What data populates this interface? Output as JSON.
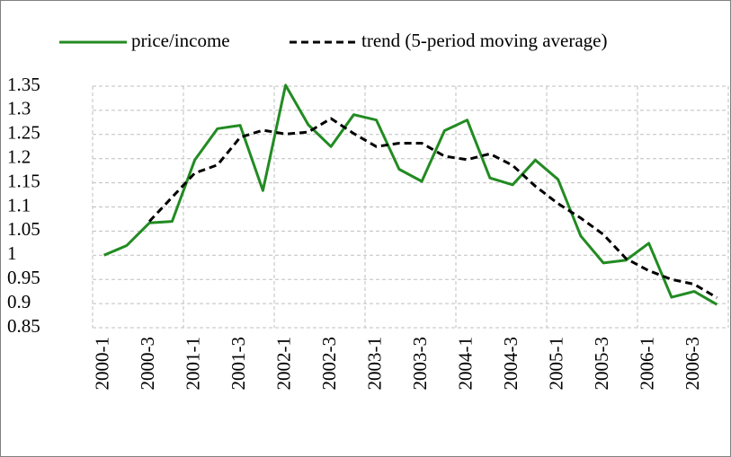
{
  "chart_data": {
    "type": "line",
    "categories": [
      "2000-1",
      null,
      "2000-3",
      null,
      "2001-1",
      null,
      "2001-3",
      null,
      "2002-1",
      null,
      "2002-3",
      null,
      "2003-1",
      null,
      "2003-3",
      null,
      "2004-1",
      null,
      "2004-3",
      null,
      "2005-1",
      null,
      "2005-3",
      null,
      "2006-1",
      null,
      "2006-3",
      null
    ],
    "series": [
      {
        "name": "price/income",
        "color": "#228b22",
        "values": [
          1.0,
          1.02,
          1.067,
          1.07,
          1.197,
          1.262,
          1.269,
          1.134,
          1.352,
          1.27,
          1.225,
          1.291,
          1.28,
          1.178,
          1.153,
          1.258,
          1.28,
          1.16,
          1.146,
          1.197,
          1.157,
          1.04,
          0.984,
          0.99,
          1.025,
          0.913,
          0.925,
          0.898
        ]
      },
      {
        "name": "trend (5-period moving average)",
        "color": "#000000",
        "dashed": true,
        "values": [
          null,
          null,
          1.07,
          1.12,
          1.17,
          1.187,
          1.244,
          1.259,
          1.251,
          1.255,
          1.283,
          1.252,
          1.225,
          1.232,
          1.232,
          1.205,
          1.198,
          1.21,
          1.186,
          1.143,
          1.107,
          1.077,
          1.043,
          0.993,
          0.968,
          0.95,
          0.94,
          0.912
        ]
      }
    ],
    "ylim": [
      0.85,
      1.35
    ],
    "yticks": [
      0.85,
      0.9,
      0.95,
      1,
      1.05,
      1.1,
      1.15,
      1.2,
      1.25,
      1.3,
      1.35
    ],
    "grid": true,
    "legend": "top"
  }
}
